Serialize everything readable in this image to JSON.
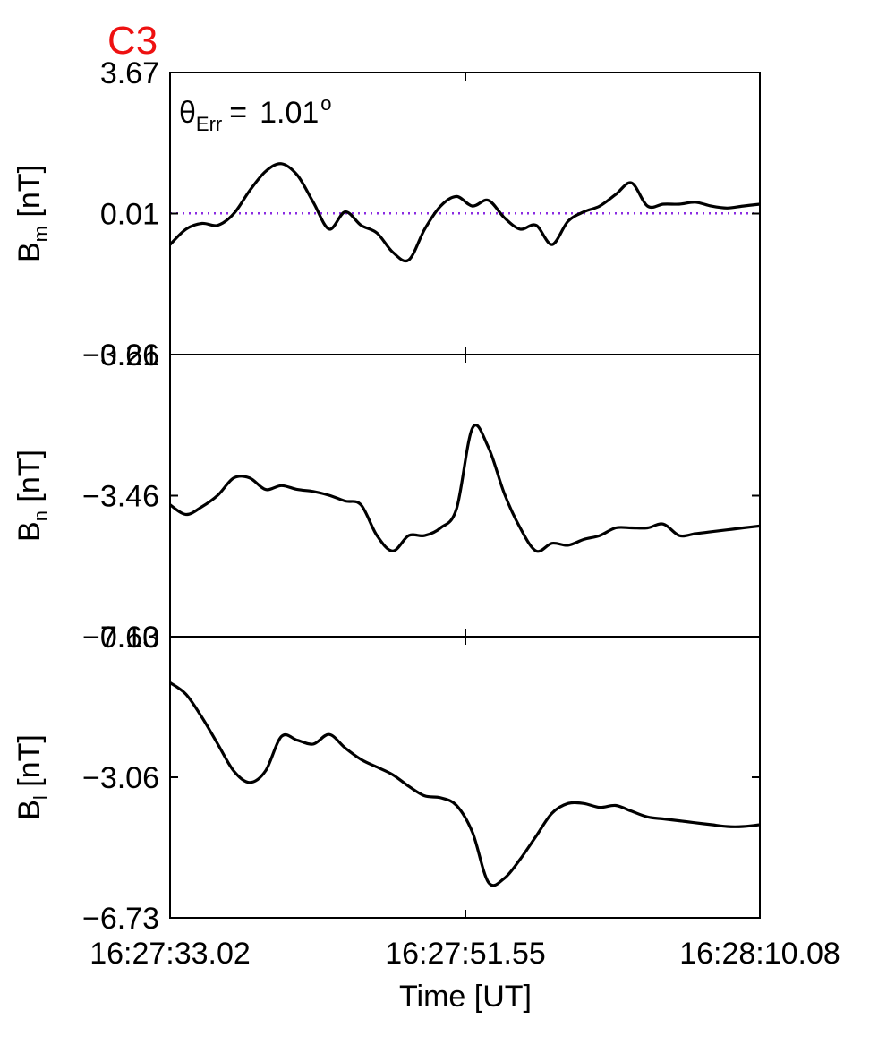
{
  "figure_label": "C3",
  "colors": {
    "label": "#ee1111",
    "reference_line": "#8a2be2",
    "curve": "#000000",
    "axes": "#000000"
  },
  "x_axis": {
    "label": "Time [UT]",
    "tick_labels": [
      "16:27:33.02",
      "16:27:51.55",
      "16:28:10.08"
    ]
  },
  "annotation": {
    "symbol": "θ",
    "subscript": "Err",
    "value": "1.01",
    "unit": "o",
    "separator": "="
  },
  "panels": [
    {
      "label_main": "B",
      "label_sub": "m",
      "label_unit": " [nT]",
      "yticks": [
        "3.67",
        "0.01",
        "−3.66"
      ]
    },
    {
      "label_main": "B",
      "label_sub": "n",
      "label_unit": " [nT]",
      "yticks": [
        "0.21",
        "−3.46",
        "−7.13"
      ]
    },
    {
      "label_main": "B",
      "label_sub": "l",
      "label_unit": " [nT]",
      "yticks": [
        "0.60",
        "−3.06",
        "−6.73"
      ]
    }
  ],
  "chart_data": [
    {
      "type": "line",
      "ylabel": "Bm [nT]",
      "xlim": [
        0,
        37.06
      ],
      "ylim": [
        -3.66,
        3.67
      ],
      "reference_line": {
        "y": 0.01,
        "style": "dotted"
      },
      "x": [
        0,
        1,
        2,
        3,
        4,
        5,
        6,
        7,
        8,
        9,
        10,
        11,
        12,
        13,
        14,
        15,
        16,
        17,
        18,
        19,
        20,
        21,
        22,
        23,
        24,
        25,
        26,
        27,
        28,
        29,
        30,
        31,
        32,
        33,
        34,
        35,
        36,
        37.06
      ],
      "y": [
        -0.8,
        -0.4,
        -0.25,
        -0.3,
        0.0,
        0.6,
        1.1,
        1.3,
        1.0,
        0.3,
        -0.4,
        0.05,
        -0.3,
        -0.5,
        -1.0,
        -1.2,
        -0.4,
        0.2,
        0.45,
        0.2,
        0.35,
        -0.1,
        -0.4,
        -0.3,
        -0.8,
        -0.2,
        0.05,
        0.2,
        0.5,
        0.8,
        0.2,
        0.25,
        0.25,
        0.3,
        0.2,
        0.15,
        0.2,
        0.25
      ]
    },
    {
      "type": "line",
      "ylabel": "Bn [nT]",
      "xlim": [
        0,
        37.06
      ],
      "ylim": [
        -7.13,
        0.21
      ],
      "x": [
        0,
        1,
        2,
        3,
        4,
        5,
        6,
        7,
        8,
        9,
        10,
        11,
        12,
        13,
        14,
        15,
        16,
        17,
        18,
        19,
        20,
        21,
        22,
        23,
        24,
        25,
        26,
        27,
        28,
        29,
        30,
        31,
        32,
        33,
        34,
        35,
        36,
        37.06
      ],
      "y": [
        -3.7,
        -3.95,
        -3.75,
        -3.45,
        -3.0,
        -3.0,
        -3.3,
        -3.2,
        -3.3,
        -3.35,
        -3.45,
        -3.6,
        -3.7,
        -4.5,
        -4.9,
        -4.5,
        -4.5,
        -4.3,
        -3.8,
        -1.7,
        -2.2,
        -3.4,
        -4.3,
        -4.9,
        -4.7,
        -4.75,
        -4.6,
        -4.5,
        -4.3,
        -4.3,
        -4.3,
        -4.2,
        -4.5,
        -4.45,
        -4.4,
        -4.35,
        -4.3,
        -4.25
      ]
    },
    {
      "type": "line",
      "ylabel": "Bl [nT]",
      "xlim": [
        0,
        37.06
      ],
      "ylim": [
        -6.73,
        0.6
      ],
      "x": [
        0,
        1,
        2,
        3,
        4,
        5,
        6,
        7,
        8,
        9,
        10,
        11,
        12,
        13,
        14,
        15,
        16,
        17,
        18,
        19,
        20,
        21,
        22,
        23,
        24,
        25,
        26,
        27,
        28,
        29,
        30,
        31,
        32,
        33,
        34,
        35,
        36,
        37.06
      ],
      "y": [
        -0.6,
        -0.9,
        -1.5,
        -2.2,
        -2.9,
        -3.2,
        -2.9,
        -2.0,
        -2.1,
        -2.2,
        -1.95,
        -2.3,
        -2.6,
        -2.8,
        -3.0,
        -3.3,
        -3.55,
        -3.6,
        -3.8,
        -4.5,
        -5.8,
        -5.7,
        -5.2,
        -4.6,
        -4.0,
        -3.75,
        -3.75,
        -3.85,
        -3.8,
        -3.95,
        -4.1,
        -4.15,
        -4.2,
        -4.25,
        -4.3,
        -4.35,
        -4.35,
        -4.3
      ]
    }
  ]
}
